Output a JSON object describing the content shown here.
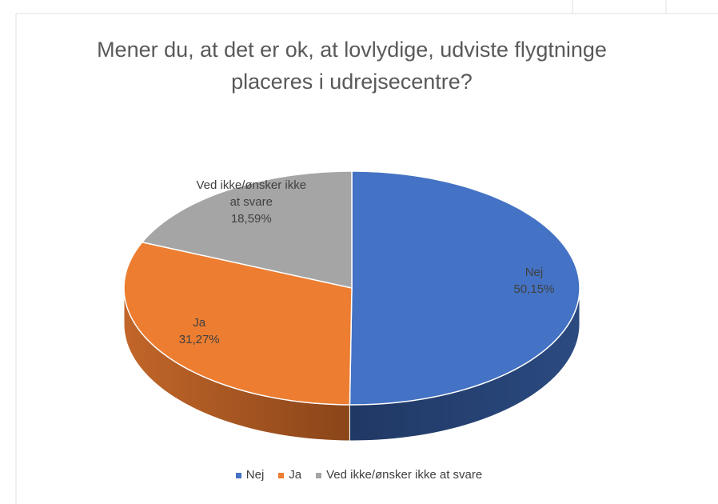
{
  "chart_data": {
    "type": "pie",
    "title": "Mener du, at det er ok, at lovlydige, udviste flygtninge placeres i udrejsecentre?",
    "categories": [
      "Nej",
      "Ja",
      "Ved ikke/ønsker ikke at svare"
    ],
    "values": [
      50.15,
      31.27,
      18.59
    ],
    "value_labels": [
      "50,15%",
      "31,27%",
      "18,59%"
    ],
    "colors": [
      "#4472c4",
      "#ed7d31",
      "#a5a5a5"
    ],
    "legend": "bottom"
  }
}
